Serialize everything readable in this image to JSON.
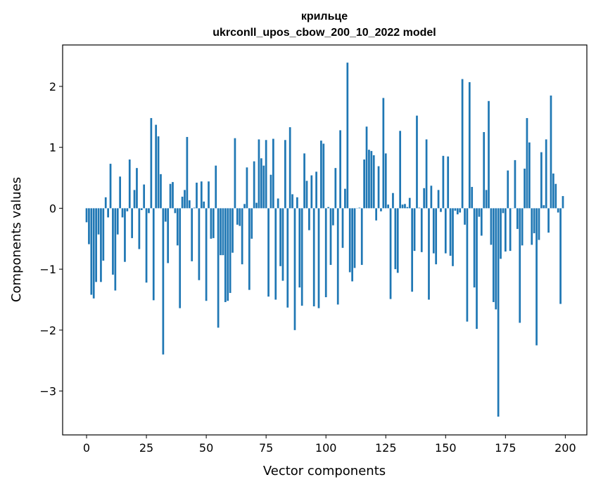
{
  "chart_data": {
    "type": "bar",
    "title": "крильце",
    "subtitle": "ukrconll_upos_cbow_200_10_2022 model",
    "xlabel": "Vector components",
    "ylabel": "Components values",
    "xlim": [
      -10,
      209
    ],
    "ylim": [
      -3.72,
      2.68
    ],
    "xticks": [
      0,
      25,
      50,
      75,
      100,
      125,
      150,
      175,
      200
    ],
    "yticks": [
      -3,
      -2,
      -1,
      0,
      1,
      2
    ],
    "xtick_labels": [
      "0",
      "25",
      "50",
      "75",
      "100",
      "125",
      "150",
      "175",
      "200"
    ],
    "ytick_labels": [
      "−3",
      "−2",
      "−1",
      "0",
      "1",
      "2"
    ],
    "grid": false,
    "bar_color": "#1f77b4",
    "x": [
      0,
      1,
      2,
      3,
      4,
      5,
      6,
      7,
      8,
      9,
      10,
      11,
      12,
      13,
      14,
      15,
      16,
      17,
      18,
      19,
      20,
      21,
      22,
      23,
      24,
      25,
      26,
      27,
      28,
      29,
      30,
      31,
      32,
      33,
      34,
      35,
      36,
      37,
      38,
      39,
      40,
      41,
      42,
      43,
      44,
      45,
      46,
      47,
      48,
      49,
      50,
      51,
      52,
      53,
      54,
      55,
      56,
      57,
      58,
      59,
      60,
      61,
      62,
      63,
      64,
      65,
      66,
      67,
      68,
      69,
      70,
      71,
      72,
      73,
      74,
      75,
      76,
      77,
      78,
      79,
      80,
      81,
      82,
      83,
      84,
      85,
      86,
      87,
      88,
      89,
      90,
      91,
      92,
      93,
      94,
      95,
      96,
      97,
      98,
      99,
      100,
      101,
      102,
      103,
      104,
      105,
      106,
      107,
      108,
      109,
      110,
      111,
      112,
      113,
      114,
      115,
      116,
      117,
      118,
      119,
      120,
      121,
      122,
      123,
      124,
      125,
      126,
      127,
      128,
      129,
      130,
      131,
      132,
      133,
      134,
      135,
      136,
      137,
      138,
      139,
      140,
      141,
      142,
      143,
      144,
      145,
      146,
      147,
      148,
      149,
      150,
      151,
      152,
      153,
      154,
      155,
      156,
      157,
      158,
      159,
      160,
      161,
      162,
      163,
      164,
      165,
      166,
      167,
      168,
      169,
      170,
      171,
      172,
      173,
      174,
      175,
      176,
      177,
      178,
      179,
      180,
      181,
      182,
      183,
      184,
      185,
      186,
      187,
      188,
      189,
      190,
      191,
      192,
      193,
      194,
      195,
      196,
      197,
      198,
      199
    ],
    "values": [
      -0.23,
      -0.59,
      -1.42,
      -1.48,
      -1.21,
      -0.43,
      -1.21,
      -0.86,
      0.18,
      -0.15,
      0.73,
      -1.09,
      -1.35,
      -0.43,
      0.52,
      -0.15,
      -0.88,
      -0.05,
      0.8,
      -0.49,
      0.3,
      0.66,
      -0.67,
      -0.03,
      0.39,
      -1.22,
      -0.08,
      1.48,
      -1.51,
      1.37,
      1.18,
      0.56,
      -2.4,
      -0.22,
      -0.9,
      0.4,
      0.43,
      -0.08,
      -0.61,
      -1.64,
      0.19,
      0.3,
      1.17,
      0.13,
      -0.87,
      0.01,
      0.42,
      -1.18,
      0.44,
      0.11,
      -1.52,
      0.44,
      -0.5,
      -0.49,
      0.7,
      -1.96,
      -0.77,
      -0.77,
      -1.54,
      -1.52,
      -1.39,
      -0.73,
      1.15,
      -0.27,
      -0.29,
      -0.92,
      0.07,
      0.67,
      -1.34,
      -0.5,
      0.77,
      0.09,
      1.13,
      0.82,
      0.7,
      1.12,
      -1.45,
      0.55,
      1.14,
      -1.5,
      0.16,
      -0.95,
      -1.19,
      1.12,
      -1.63,
      1.33,
      0.23,
      -2.0,
      0.18,
      -1.3,
      -1.6,
      0.9,
      0.45,
      -0.36,
      0.54,
      -1.61,
      0.6,
      -1.64,
      1.11,
      1.06,
      -1.46,
      0.02,
      -0.93,
      -0.28,
      0.66,
      -1.58,
      1.28,
      -0.65,
      0.32,
      2.39,
      -1.05,
      -1.2,
      -0.98,
      0.0,
      0.01,
      -0.93,
      0.8,
      1.34,
      0.96,
      0.94,
      0.87,
      -0.2,
      0.69,
      -0.05,
      1.81,
      0.9,
      0.06,
      -1.49,
      0.25,
      -1.0,
      -1.06,
      1.27,
      0.06,
      0.07,
      0.02,
      0.17,
      -1.37,
      -0.7,
      1.52,
      0.01,
      -0.72,
      0.33,
      1.13,
      -1.5,
      0.37,
      -0.74,
      -0.92,
      0.3,
      -0.06,
      0.86,
      -0.74,
      0.85,
      -0.78,
      -0.95,
      -0.04,
      -0.1,
      -0.07,
      2.12,
      -0.27,
      -1.86,
      2.07,
      0.35,
      -1.3,
      -1.98,
      -0.14,
      -0.45,
      1.25,
      0.3,
      1.76,
      -0.6,
      -1.54,
      -1.66,
      -3.42,
      -0.83,
      -0.08,
      -0.71,
      0.62,
      -0.7,
      0.0,
      0.79,
      -0.34,
      -1.88,
      -0.61,
      0.65,
      1.48,
      1.08,
      -0.6,
      -0.41,
      -2.25,
      -0.52,
      0.92,
      0.05,
      1.13,
      -0.4,
      1.85,
      0.57,
      0.4,
      -0.07,
      -1.57,
      0.2
    ]
  }
}
